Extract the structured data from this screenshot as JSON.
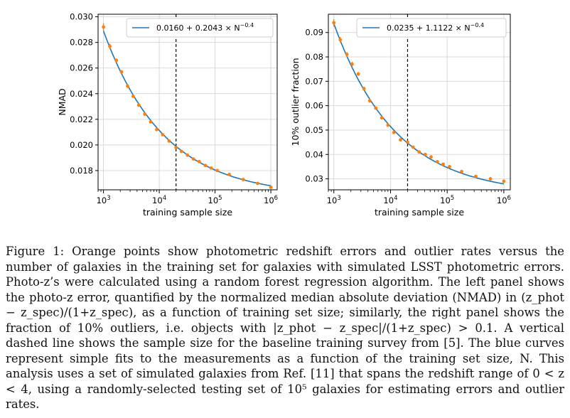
{
  "figure": {
    "panels": [
      {
        "ylabel": "NMAD",
        "xlabel": "training sample size",
        "legend": "0.0160 + 0.2043 × N",
        "legend_exp": "−0.4",
        "yticks": [
          "0.018",
          "0.020",
          "0.022",
          "0.024",
          "0.026",
          "0.028",
          "0.030"
        ],
        "xticks": [
          {
            "base": "10",
            "exp": "3"
          },
          {
            "base": "10",
            "exp": "4"
          },
          {
            "base": "10",
            "exp": "5"
          },
          {
            "base": "10",
            "exp": "6"
          }
        ]
      },
      {
        "ylabel": "10% outlier fraction",
        "xlabel": "training sample size",
        "legend": "0.0235 + 1.1122 × N",
        "legend_exp": "−0.4",
        "yticks": [
          "0.03",
          "0.04",
          "0.05",
          "0.06",
          "0.07",
          "0.08",
          "0.09"
        ],
        "xticks": [
          {
            "base": "10",
            "exp": "3"
          },
          {
            "base": "10",
            "exp": "4"
          },
          {
            "base": "10",
            "exp": "5"
          },
          {
            "base": "10",
            "exp": "6"
          }
        ]
      }
    ]
  },
  "caption": {
    "label": "Figure 1:",
    "text": "Orange points show photometric redshift errors and outlier rates versus the number of galaxies in the training set for galaxies with simulated LSST photometric errors. Photo-z’s were calculated using a random forest regression algorithm. The left panel shows the photo-z error, quantified by the normalized median absolute deviation (NMAD) in (z_phot − z_spec)/(1+z_spec), as a function of training set size; similarly, the right panel shows the fraction of 10% outliers, i.e. objects with |z_phot − z_spec|/(1+z_spec) > 0.1. A vertical dashed line shows the sample size for the baseline training survey from [5]. The blue curves represent simple fits to the measurements as a function of the training set size, N. This analysis uses a set of simulated galaxies from Ref. [11] that spans the redshift range of 0 < z < 4, using a randomly-selected testing set of 10⁵ galaxies for estimating errors and outlier rates."
  },
  "chart_data": [
    {
      "type": "scatter",
      "ylabel": "NMAD",
      "xlabel": "training sample size",
      "xscale": "log",
      "xlim": [
        800,
        1300000
      ],
      "ylim": [
        0.0165,
        0.0302
      ],
      "grid": true,
      "legend_position": "top-right",
      "fit": {
        "a": 0.016,
        "b": 0.2043,
        "p": -0.4,
        "color": "#1f77b4"
      },
      "vline": 20000,
      "series": [
        {
          "color": "#ff7f0e",
          "points": [
            [
              1000,
              0.0292
            ],
            [
              1300,
              0.0277
            ],
            [
              1700,
              0.0266
            ],
            [
              2100,
              0.0257
            ],
            [
              2700,
              0.0246
            ],
            [
              3400,
              0.0238
            ],
            [
              4300,
              0.0231
            ],
            [
              5500,
              0.0224
            ],
            [
              7000,
              0.0218
            ],
            [
              9000,
              0.0212
            ],
            [
              11500,
              0.0208
            ],
            [
              15000,
              0.0203
            ],
            [
              20000,
              0.0198
            ],
            [
              25000,
              0.0195
            ],
            [
              32000,
              0.0192
            ],
            [
              41000,
              0.0189
            ],
            [
              52000,
              0.0187
            ],
            [
              67000,
              0.0184
            ],
            [
              85000,
              0.0182
            ],
            [
              110000,
              0.018
            ],
            [
              180000,
              0.0177
            ],
            [
              320000,
              0.0173
            ],
            [
              580000,
              0.017
            ],
            [
              1000000,
              0.0167
            ]
          ],
          "err": [
            0.0003,
            0.0002,
            0.00015,
            0.00015,
            0.00015,
            0.0001,
            0.0001,
            0.0001,
            0.0001,
            0.0001,
            0.0001,
            0.0001,
            0.0001,
            0.0001,
            0.0001,
            0.0001,
            0.0001,
            0.0001,
            0.0001,
            0.0001,
            0.0001,
            0.0001,
            0.0001,
            0.0001
          ]
        }
      ]
    },
    {
      "type": "scatter",
      "ylabel": "10% outlier fraction",
      "xlabel": "training sample size",
      "xscale": "log",
      "xlim": [
        800,
        1300000
      ],
      "ylim": [
        0.0255,
        0.0975
      ],
      "grid": true,
      "legend_position": "top-right",
      "fit": {
        "a": 0.0235,
        "b": 1.1122,
        "p": -0.4,
        "color": "#1f77b4"
      },
      "vline": 20000,
      "series": [
        {
          "color": "#ff7f0e",
          "points": [
            [
              1000,
              0.094
            ],
            [
              1300,
              0.087
            ],
            [
              1700,
              0.081
            ],
            [
              2100,
              0.077
            ],
            [
              2700,
              0.073
            ],
            [
              3400,
              0.067
            ],
            [
              4300,
              0.062
            ],
            [
              5500,
              0.059
            ],
            [
              7000,
              0.055
            ],
            [
              9000,
              0.052
            ],
            [
              11500,
              0.049
            ],
            [
              15000,
              0.046
            ],
            [
              20000,
              0.045
            ],
            [
              25000,
              0.043
            ],
            [
              32000,
              0.041
            ],
            [
              41000,
              0.04
            ],
            [
              52000,
              0.039
            ],
            [
              67000,
              0.037
            ],
            [
              85000,
              0.036
            ],
            [
              110000,
              0.035
            ],
            [
              180000,
              0.033
            ],
            [
              320000,
              0.031
            ],
            [
              580000,
              0.03
            ],
            [
              1000000,
              0.029
            ]
          ],
          "err": [
            0.0015,
            0.0012,
            0.001,
            0.001,
            0.0008,
            0.0008,
            0.0008,
            0.0006,
            0.0006,
            0.0006,
            0.0005,
            0.0005,
            0.0005,
            0.0005,
            0.0004,
            0.0004,
            0.0004,
            0.0004,
            0.0004,
            0.0004,
            0.0004,
            0.0004,
            0.0004,
            0.0004
          ]
        }
      ]
    }
  ]
}
